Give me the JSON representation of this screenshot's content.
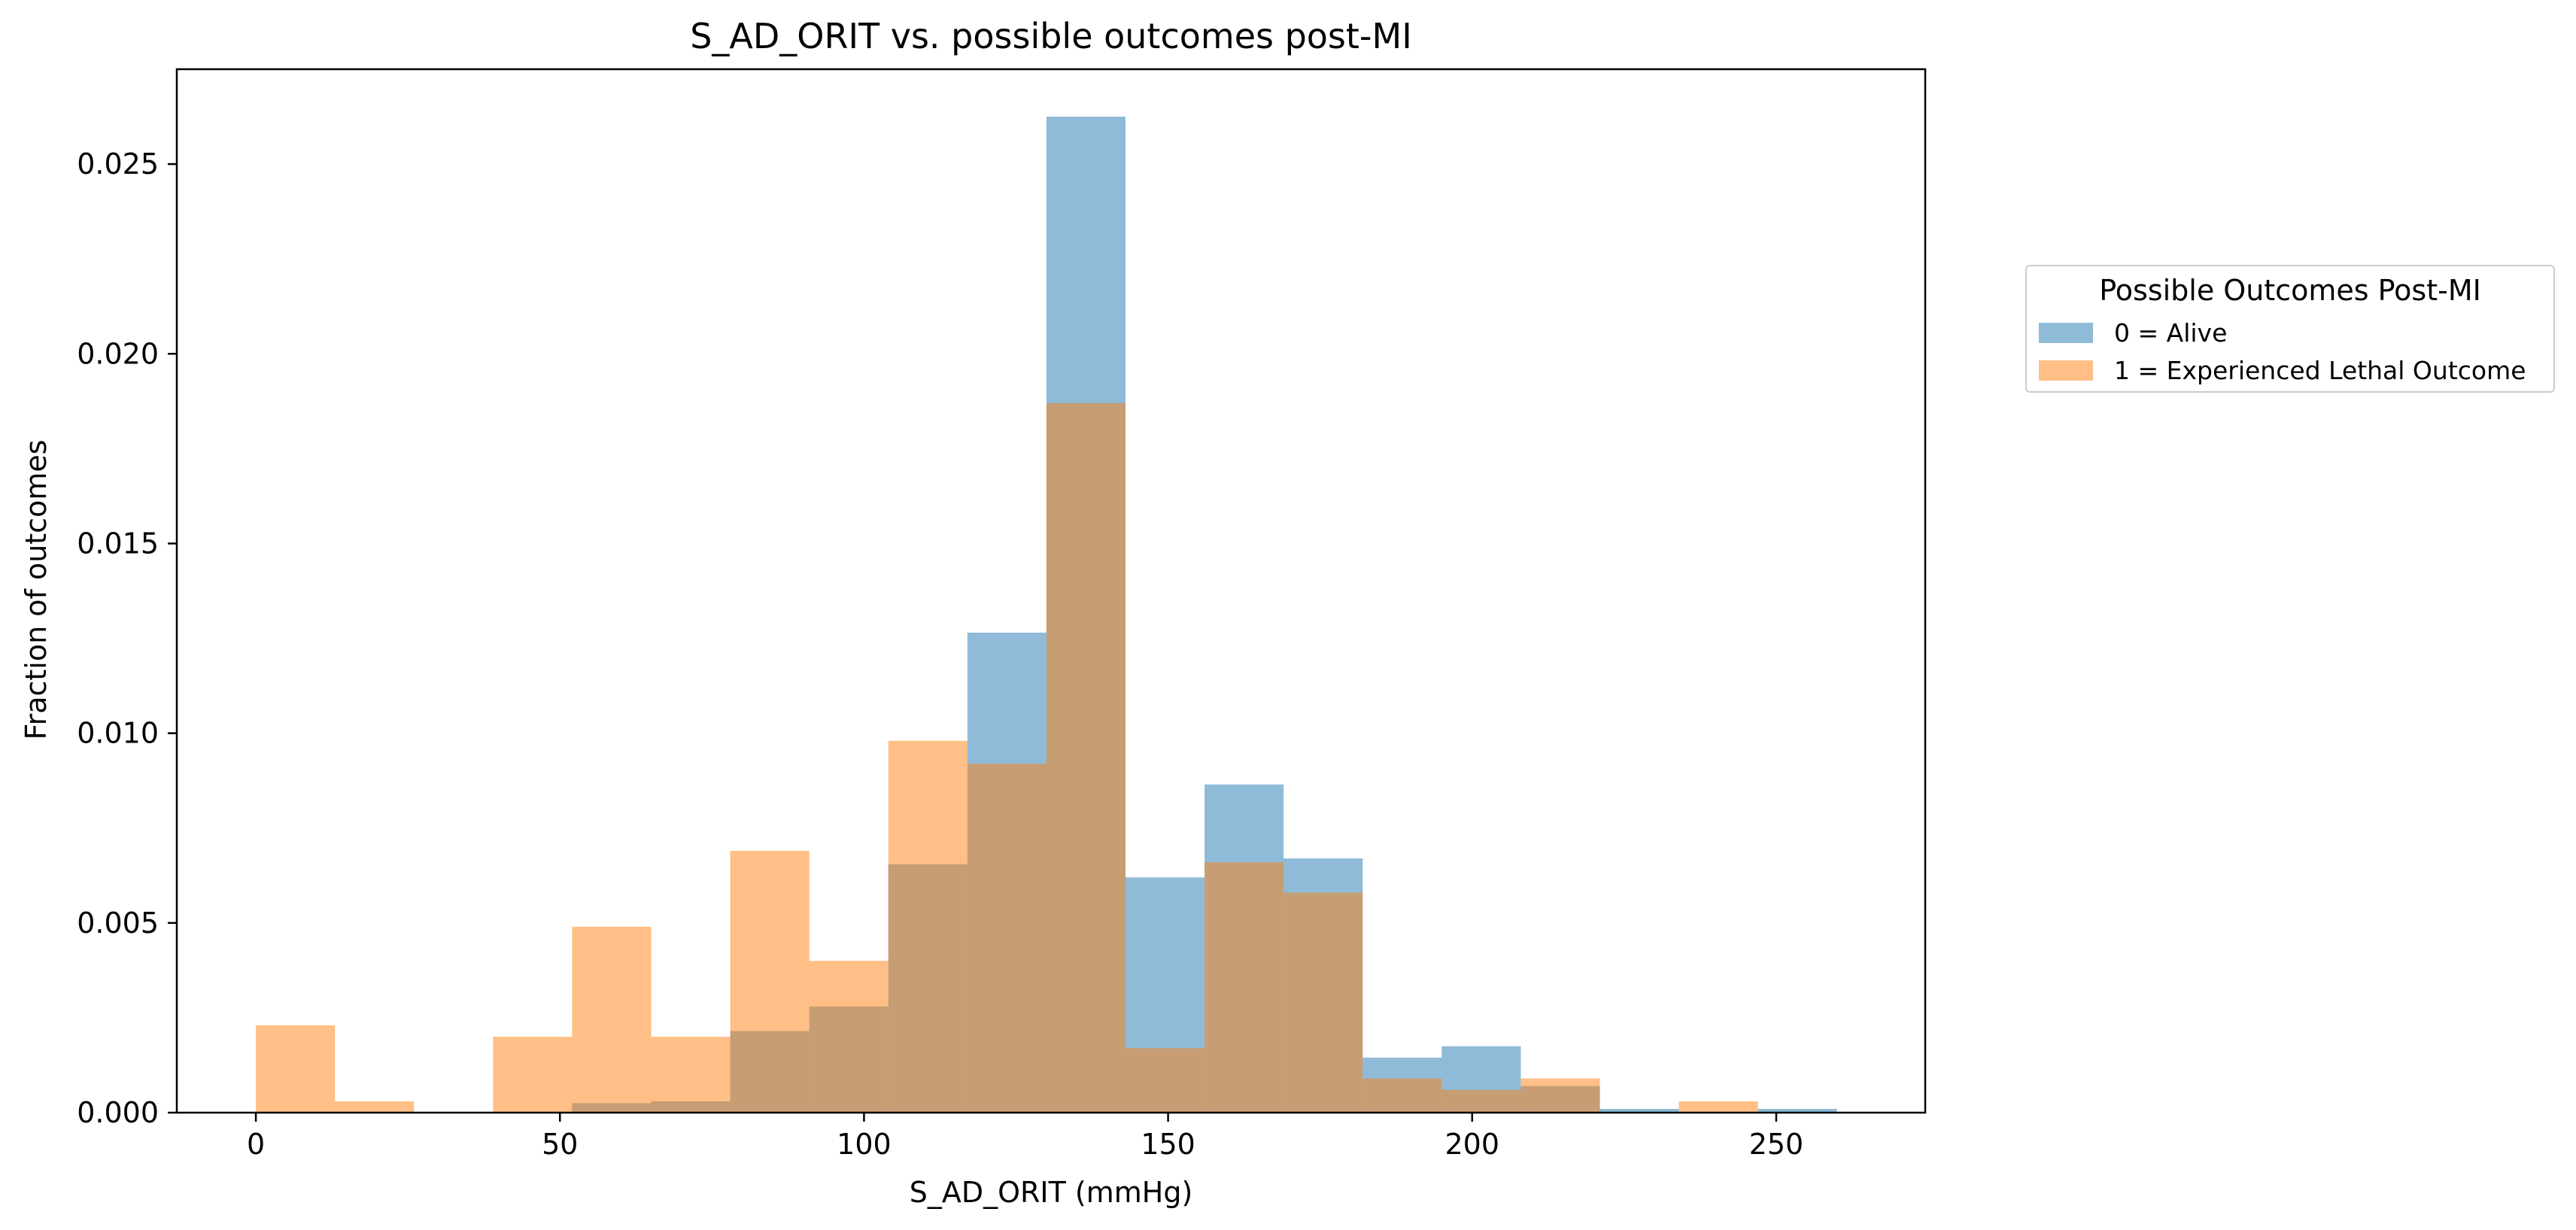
{
  "chart_data": {
    "type": "bar",
    "title": "S_AD_ORIT vs. possible outcomes post-MI",
    "xlabel": "S_AD_ORIT (mmHg)",
    "ylabel": "Fraction of outcomes",
    "xlim": [
      -13,
      274.5
    ],
    "ylim": [
      0,
      0.0275
    ],
    "xticks": [
      0,
      50,
      100,
      150,
      200,
      250
    ],
    "xtick_labels": [
      "0",
      "50",
      "100",
      "150",
      "200",
      "250"
    ],
    "yticks": [
      0,
      0.005,
      0.01,
      0.015,
      0.02,
      0.025
    ],
    "ytick_labels": [
      "0.000",
      "0.005",
      "0.010",
      "0.015",
      "0.020",
      "0.025"
    ],
    "legend": {
      "title": "Possible Outcomes Post-MI",
      "placement": "outside-right"
    },
    "series": [
      {
        "name": "0 = Alive",
        "color": "#1f77b4",
        "opacity": 0.5,
        "bin_edges": [
          0,
          13,
          26,
          39,
          52,
          65,
          78,
          91,
          104,
          117,
          130,
          143,
          156,
          169,
          182,
          195,
          208,
          221,
          234,
          247,
          260
        ],
        "values": [
          0,
          0,
          0,
          0,
          0.00025,
          0.0003,
          0.00215,
          0.0028,
          0.00655,
          0.01265,
          0.02625,
          0.0062,
          0.00865,
          0.0067,
          0.00145,
          0.00175,
          0.0007,
          0.0001,
          0,
          0.0001
        ]
      },
      {
        "name": "1 = Experienced Lethal Outcome",
        "color": "#ff7f0e",
        "opacity": 0.5,
        "bin_edges": [
          0,
          13,
          26,
          39,
          52,
          65,
          78,
          91,
          104,
          117,
          130,
          143,
          156,
          169,
          182,
          195,
          208,
          221,
          234,
          247
        ],
        "values": [
          0.0023,
          0.0003,
          0,
          0.002,
          0.0049,
          0.002,
          0.0069,
          0.004,
          0.0098,
          0.0092,
          0.0187,
          0.0017,
          0.0066,
          0.0058,
          0.0009,
          0.0006,
          0.0009,
          0,
          0.0003
        ]
      }
    ]
  }
}
